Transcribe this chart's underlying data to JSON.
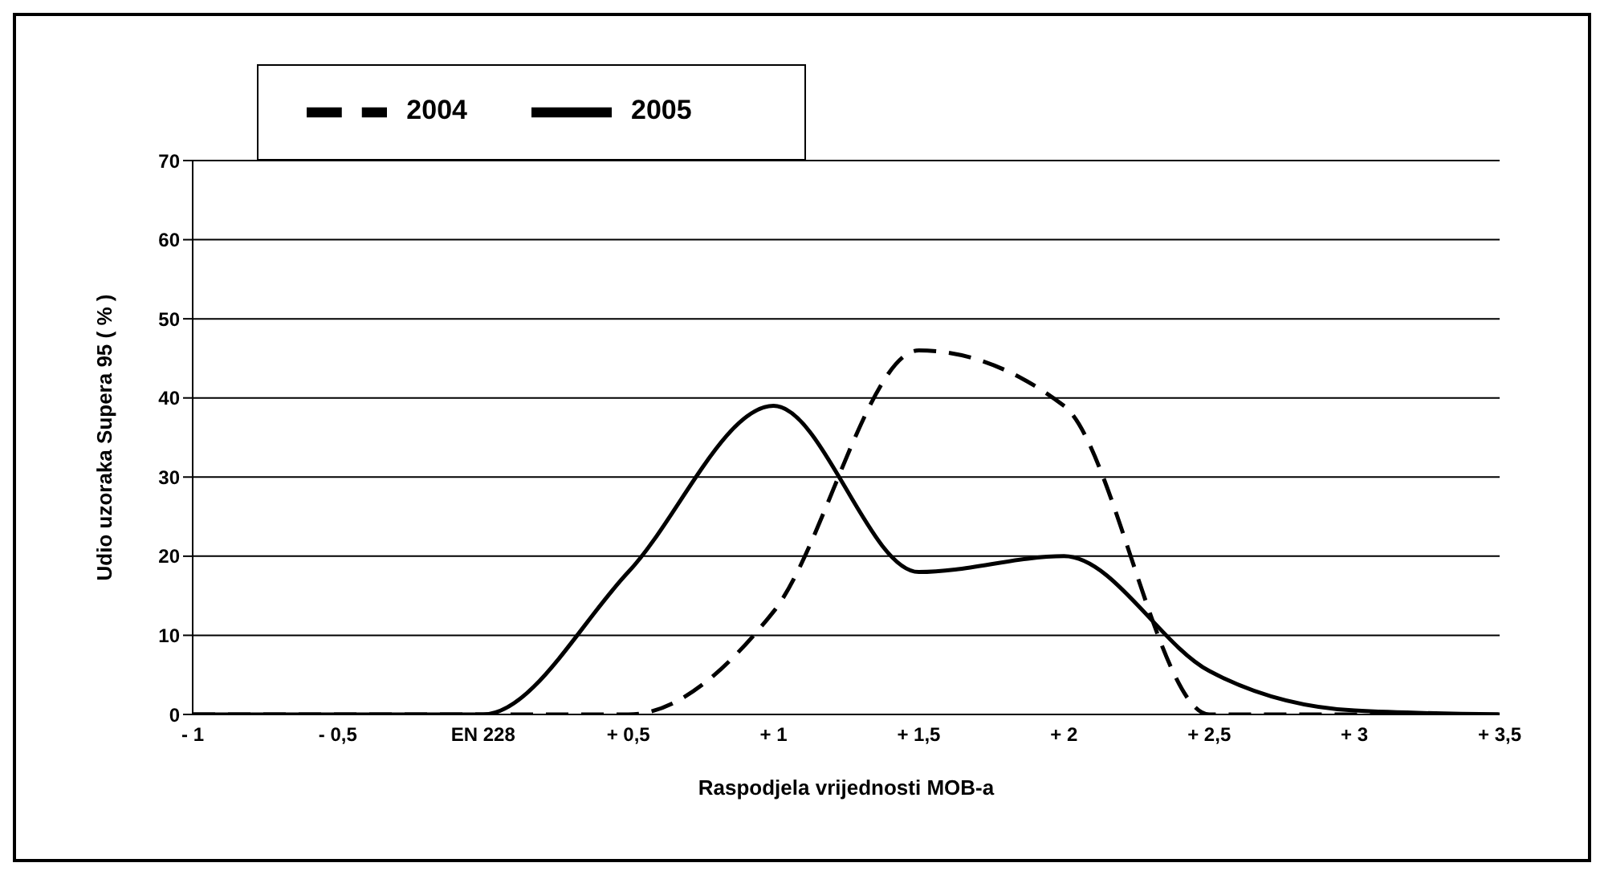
{
  "chart_data": {
    "type": "line",
    "xlabel": "Raspodjela vrijednosti MOB-a",
    "ylabel": "Udio uzoraka Supera 95  ( % )",
    "categories": [
      "- 1",
      "- 0,5",
      "EN 228",
      "+ 0,5",
      "+ 1",
      "+ 1,5",
      "+ 2",
      "+ 2,5",
      "+ 3",
      "+ 3,5"
    ],
    "series": [
      {
        "name": "2004",
        "color": "#000000",
        "line_style": "dashed",
        "values": [
          0,
          0,
          0,
          0,
          13,
          46,
          39,
          0,
          0,
          0
        ]
      },
      {
        "name": "2005",
        "color": "#000000",
        "line_style": "solid",
        "values": [
          0,
          0,
          0,
          18,
          39,
          18,
          20,
          5.5,
          0.5,
          0
        ]
      }
    ],
    "ylim": [
      0,
      70
    ],
    "yticks": [
      0,
      10,
      20,
      30,
      40,
      50,
      60,
      70
    ],
    "grid": "y",
    "legend": "top left",
    "marker": "none"
  }
}
